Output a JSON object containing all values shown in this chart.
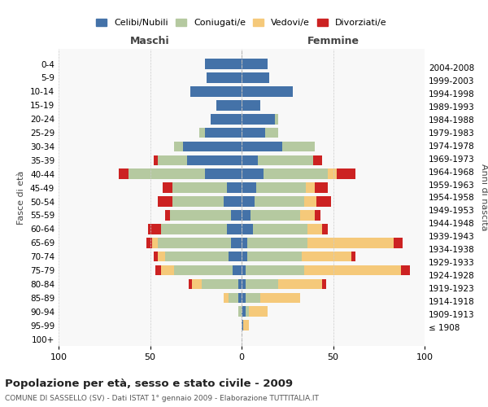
{
  "age_groups": [
    "100+",
    "95-99",
    "90-94",
    "85-89",
    "80-84",
    "75-79",
    "70-74",
    "65-69",
    "60-64",
    "55-59",
    "50-54",
    "45-49",
    "40-44",
    "35-39",
    "30-34",
    "25-29",
    "20-24",
    "15-19",
    "10-14",
    "5-9",
    "0-4"
  ],
  "birth_years": [
    "≤ 1908",
    "1909-1913",
    "1914-1918",
    "1919-1923",
    "1924-1928",
    "1929-1933",
    "1934-1938",
    "1939-1943",
    "1944-1948",
    "1949-1953",
    "1954-1958",
    "1959-1963",
    "1964-1968",
    "1969-1973",
    "1974-1978",
    "1979-1983",
    "1984-1988",
    "1989-1993",
    "1994-1998",
    "1999-2003",
    "2004-2008"
  ],
  "colors": {
    "celibi": "#4472a8",
    "coniugati": "#b5c9a0",
    "vedovi": "#f5c97a",
    "divorziati": "#cc2222"
  },
  "maschi": {
    "celibi": [
      0,
      0,
      0,
      2,
      2,
      5,
      7,
      6,
      8,
      6,
      10,
      8,
      20,
      30,
      32,
      20,
      17,
      14,
      28,
      19,
      20
    ],
    "coniugati": [
      0,
      0,
      2,
      5,
      20,
      32,
      35,
      40,
      36,
      33,
      28,
      30,
      42,
      16,
      5,
      3,
      0,
      0,
      0,
      0,
      0
    ],
    "vedovi": [
      0,
      0,
      0,
      3,
      5,
      7,
      4,
      3,
      0,
      0,
      0,
      0,
      0,
      0,
      0,
      0,
      0,
      0,
      0,
      0,
      0
    ],
    "divorziati": [
      0,
      0,
      0,
      0,
      2,
      3,
      2,
      3,
      7,
      3,
      8,
      5,
      5,
      2,
      0,
      0,
      0,
      0,
      0,
      0,
      0
    ]
  },
  "femmine": {
    "celibi": [
      0,
      1,
      2,
      2,
      2,
      2,
      3,
      3,
      6,
      5,
      7,
      8,
      12,
      9,
      22,
      13,
      18,
      10,
      28,
      15,
      14
    ],
    "coniugati": [
      0,
      0,
      2,
      8,
      18,
      32,
      30,
      33,
      30,
      27,
      27,
      27,
      35,
      30,
      18,
      7,
      2,
      0,
      0,
      0,
      0
    ],
    "vedovi": [
      0,
      3,
      10,
      22,
      24,
      53,
      27,
      47,
      8,
      8,
      7,
      5,
      5,
      0,
      0,
      0,
      0,
      0,
      0,
      0,
      0
    ],
    "divorziati": [
      0,
      0,
      0,
      0,
      2,
      5,
      2,
      5,
      3,
      3,
      8,
      7,
      10,
      5,
      0,
      0,
      0,
      0,
      0,
      0,
      0
    ]
  },
  "xlim": 100,
  "title": "Popolazione per età, sesso e stato civile - 2009",
  "subtitle": "COMUNE DI SASSELLO (SV) - Dati ISTAT 1° gennaio 2009 - Elaborazione TUTTITALIA.IT",
  "ylabel_left": "Fasce di età",
  "ylabel_right": "Anni di nascita",
  "xlabel_left": "Maschi",
  "xlabel_right": "Femmine",
  "bg_color": "#f8f8f8",
  "grid_color": "#cccccc"
}
